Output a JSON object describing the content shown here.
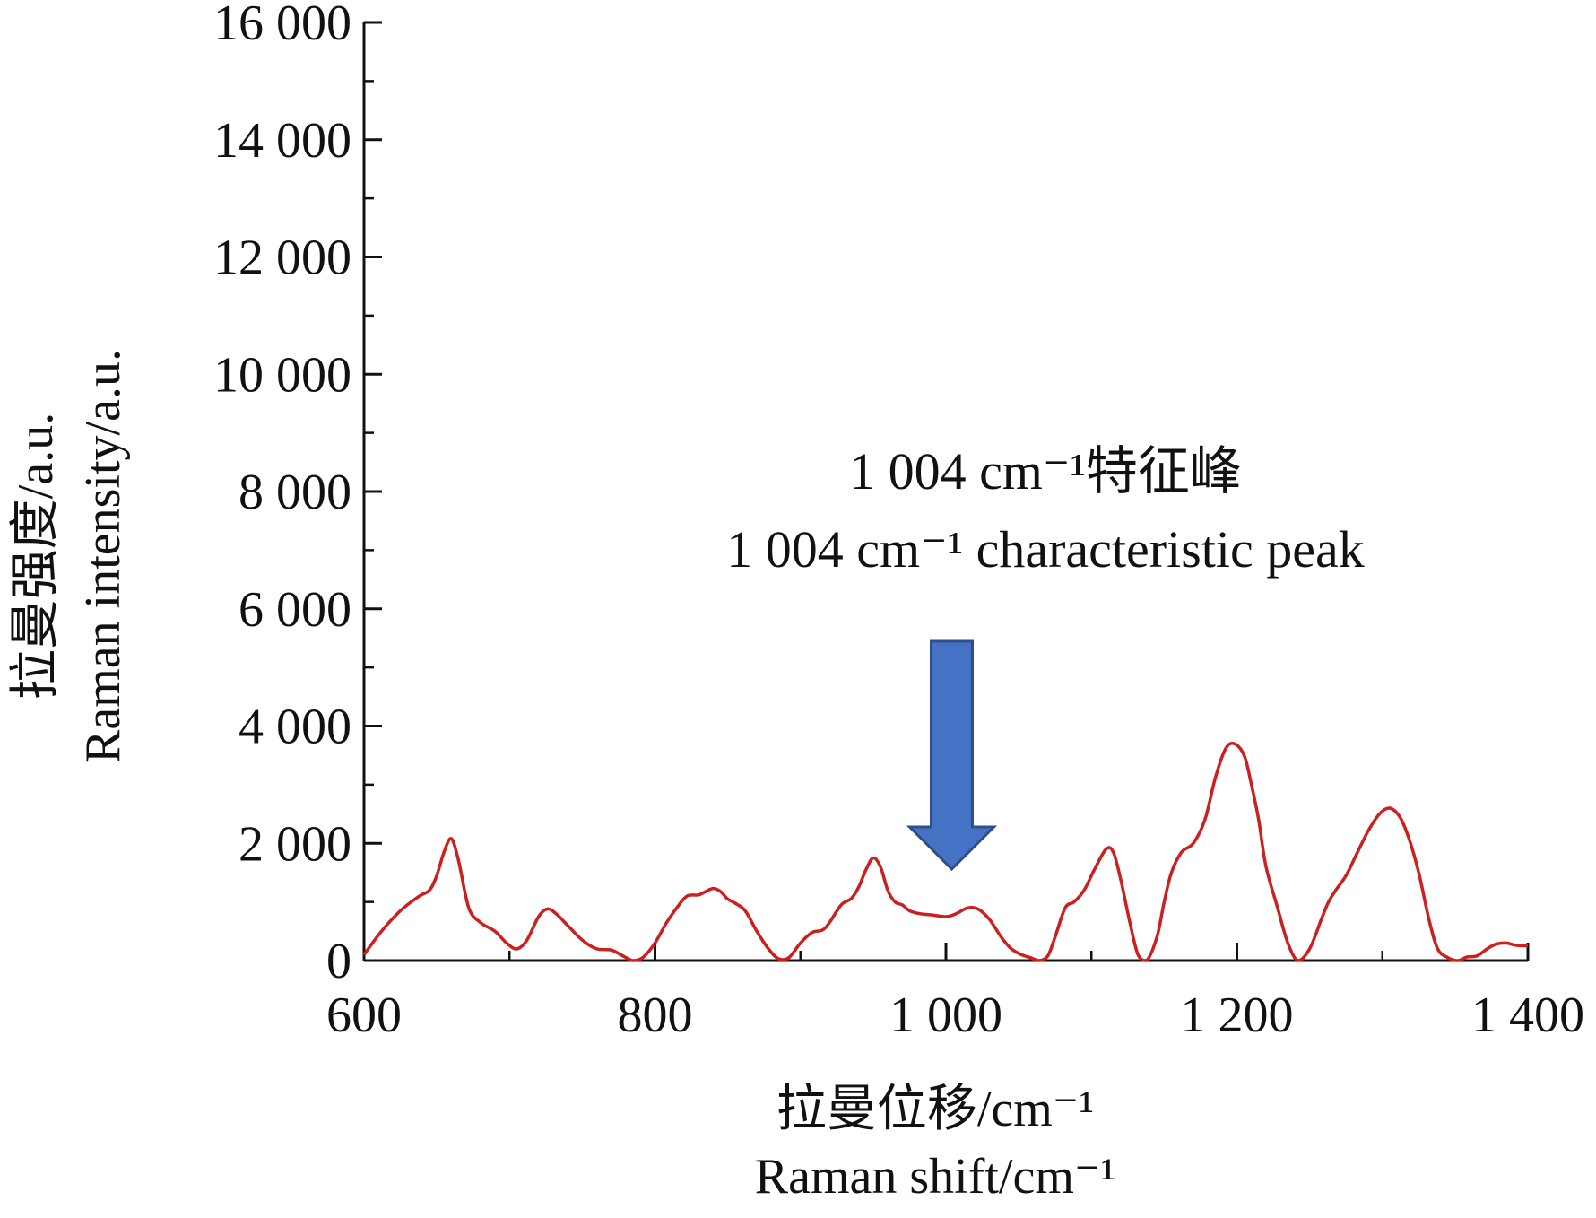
{
  "chart_data": {
    "type": "line",
    "title": "",
    "xlabel_cn": "拉曼位移/cm⁻¹",
    "xlabel_en": "Raman shift/cm⁻¹",
    "ylabel_cn": "拉曼强度/a.u.",
    "ylabel_en": "Raman intensity/a.u.",
    "xlim": [
      600,
      1400
    ],
    "ylim": [
      0,
      16000
    ],
    "x_ticks": [
      600,
      800,
      1000,
      1200,
      1400
    ],
    "x_tick_labels": [
      "600",
      "800",
      "1 000",
      "1 200",
      "1 400"
    ],
    "y_ticks": [
      0,
      2000,
      4000,
      6000,
      8000,
      10000,
      12000,
      14000,
      16000
    ],
    "y_tick_labels": [
      "0",
      "2 000",
      "4 000",
      "6 000",
      "8 000",
      "10 000",
      "12 000",
      "14 000",
      "16 000"
    ],
    "grid": false,
    "series": [
      {
        "color": "#cc1f1f",
        "x": [
          600,
          612,
          625,
          638,
          645,
          650,
          655,
          660,
          665,
          672,
          680,
          690,
          698,
          705,
          712,
          720,
          726,
          732,
          740,
          750,
          760,
          770,
          778,
          785,
          792,
          800,
          808,
          815,
          822,
          830,
          835,
          840,
          845,
          850,
          855,
          862,
          870,
          878,
          885,
          892,
          900,
          908,
          915,
          920,
          928,
          935,
          940,
          945,
          950,
          955,
          960,
          965,
          970,
          975,
          982,
          990,
          1000,
          1007,
          1015,
          1022,
          1030,
          1038,
          1045,
          1052,
          1058,
          1064,
          1070,
          1075,
          1082,
          1088,
          1095,
          1102,
          1110,
          1115,
          1120,
          1126,
          1132,
          1138,
          1145,
          1150,
          1155,
          1162,
          1170,
          1178,
          1185,
          1192,
          1198,
          1205,
          1210,
          1215,
          1220,
          1228,
          1235,
          1242,
          1250,
          1258,
          1263,
          1268,
          1275,
          1282,
          1290,
          1298,
          1305,
          1312,
          1318,
          1325,
          1332,
          1338,
          1345,
          1352,
          1358,
          1365,
          1372,
          1378,
          1385,
          1392,
          1400
        ],
        "y": [
          100,
          500,
          850,
          1100,
          1200,
          1450,
          1850,
          2080,
          1700,
          900,
          650,
          500,
          300,
          200,
          350,
          750,
          880,
          800,
          600,
          350,
          200,
          180,
          80,
          0,
          60,
          300,
          650,
          900,
          1100,
          1120,
          1180,
          1230,
          1180,
          1050,
          980,
          850,
          500,
          200,
          30,
          50,
          300,
          480,
          520,
          650,
          950,
          1060,
          1250,
          1550,
          1750,
          1600,
          1200,
          1000,
          950,
          850,
          800,
          780,
          750,
          800,
          900,
          880,
          700,
          400,
          200,
          100,
          50,
          0,
          80,
          400,
          900,
          1000,
          1200,
          1550,
          1900,
          1850,
          1400,
          700,
          100,
          0,
          400,
          1000,
          1500,
          1850,
          2000,
          2400,
          3100,
          3600,
          3700,
          3500,
          3000,
          2400,
          1600,
          900,
          300,
          0,
          200,
          700,
          1000,
          1200,
          1450,
          1800,
          2200,
          2500,
          2600,
          2450,
          2100,
          1500,
          700,
          200,
          50,
          0,
          60,
          80,
          200,
          280,
          300,
          260,
          250
        ]
      }
    ],
    "annotation": {
      "line1": "1 004 cm⁻¹特征峰",
      "line2": "1 004 cm⁻¹ characteristic peak",
      "target_x": 1004,
      "arrow_color": "#4472c4"
    }
  }
}
